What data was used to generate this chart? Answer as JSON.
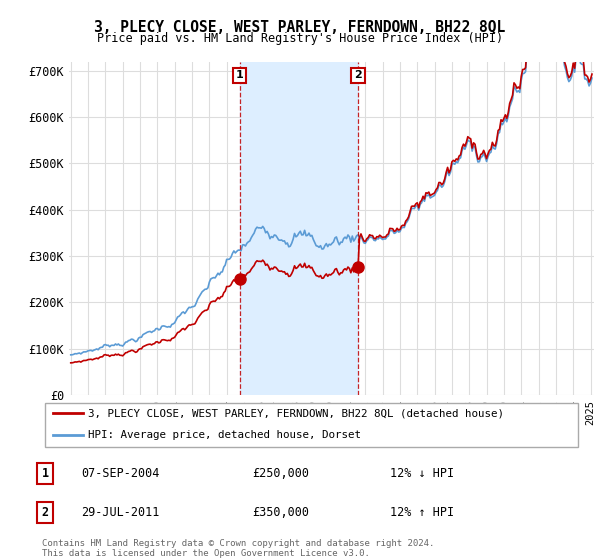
{
  "title": "3, PLECY CLOSE, WEST PARLEY, FERNDOWN, BH22 8QL",
  "subtitle": "Price paid vs. HM Land Registry's House Price Index (HPI)",
  "ylim": [
    0,
    720000
  ],
  "yticks": [
    0,
    100000,
    200000,
    300000,
    400000,
    500000,
    600000,
    700000
  ],
  "ytick_labels": [
    "£0",
    "£100K",
    "£200K",
    "£300K",
    "£400K",
    "£500K",
    "£600K",
    "£700K"
  ],
  "hpi_color": "#5b9bd5",
  "price_color": "#c00000",
  "sale1_year": 2004,
  "sale1_month": 9,
  "sale1_price": 250000,
  "sale1_label": "07-SEP-2004",
  "sale1_hpi_diff": "12% ↓ HPI",
  "sale2_year": 2011,
  "sale2_month": 7,
  "sale2_price": 350000,
  "sale2_label": "29-JUL-2011",
  "sale2_hpi_diff": "12% ↑ HPI",
  "legend_label1": "3, PLECY CLOSE, WEST PARLEY, FERNDOWN, BH22 8QL (detached house)",
  "legend_label2": "HPI: Average price, detached house, Dorset",
  "footer": "Contains HM Land Registry data © Crown copyright and database right 2024.\nThis data is licensed under the Open Government Licence v3.0.",
  "background_color": "#ffffff",
  "grid_color": "#dddddd",
  "fill_color": "#ddeeff",
  "xstart": 1995,
  "xend": 2025
}
